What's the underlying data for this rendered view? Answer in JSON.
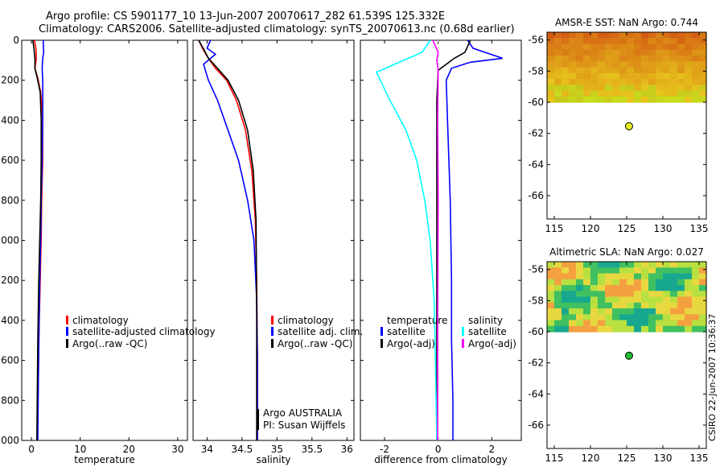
{
  "header": {
    "line1": "Argo profile: CS 5901177_10 13-Jun-2007 20070617_282 61.539S 125.332E",
    "line2": "Climatology: CARS2006. Satellite-adjusted climatology: synTS_20070613.nc (0.68d earlier)"
  },
  "stamp": "CSIRO 22-Jun-2007 10:36:37",
  "colors": {
    "climatology": "#ff0000",
    "satellite": "#0000ff",
    "argo": "#000000",
    "sal_satellite": "#00ffff",
    "sal_argo": "#ff00ff"
  },
  "chart_data": [
    {
      "type": "line",
      "title": "",
      "xlabel": "temperature",
      "ylabel": "",
      "xlim": [
        -2,
        32
      ],
      "ylim": [
        2000,
        0
      ],
      "y_reversed": true,
      "xticks": [
        "0",
        "10",
        "20",
        "30"
      ],
      "xtick_values": [
        0,
        10,
        20,
        30
      ],
      "yticks": [
        "0",
        "200",
        "400",
        "600",
        "800",
        "1000",
        "1200",
        "1400",
        "1600",
        "1800",
        "2000"
      ],
      "ytick_values": [
        0,
        200,
        400,
        600,
        800,
        1000,
        1200,
        1400,
        1600,
        1800,
        2000
      ],
      "series": [
        {
          "name": "climatology",
          "color": "#ff0000",
          "x": [
            0.6,
            0.9,
            1.0,
            0.7,
            1.3,
            1.9,
            2.3,
            2.3,
            2.1,
            2.0,
            1.8,
            1.6,
            1.4,
            1.2
          ],
          "y": [
            0,
            40,
            90,
            140,
            190,
            260,
            400,
            600,
            800,
            1000,
            1200,
            1400,
            1700,
            2000
          ]
        },
        {
          "name": "satellite-adjusted climatology",
          "color": "#0000ff",
          "x": [
            2.4,
            2.5,
            2.3,
            2.2,
            2.3,
            2.3,
            2.2,
            2.0,
            1.9,
            1.7,
            1.5,
            1.3
          ],
          "y": [
            0,
            60,
            90,
            140,
            200,
            400,
            600,
            800,
            1000,
            1200,
            1500,
            2000
          ]
        },
        {
          "name": "Argo(..raw -QC)",
          "color": "#000000",
          "x": [
            0.3,
            0.5,
            0.7,
            0.7,
            1.2,
            1.8,
            2.0,
            2.0,
            1.9,
            1.7,
            1.5,
            1.3,
            1.1
          ],
          "y": [
            0,
            40,
            90,
            140,
            190,
            260,
            400,
            600,
            800,
            1000,
            1200,
            1500,
            2000
          ]
        }
      ],
      "legend": {
        "placement": "lower-right",
        "entries": [
          "climatology",
          "satellite-adjusted climatology",
          "Argo(..raw -QC)"
        ]
      }
    },
    {
      "type": "line",
      "title": "",
      "xlabel": "salinity",
      "ylabel": "",
      "xlim": [
        33.8,
        36.1
      ],
      "ylim": [
        2000,
        0
      ],
      "y_reversed": true,
      "xticks": [
        "34",
        "34.5",
        "35",
        "35.5",
        "36"
      ],
      "xtick_values": [
        34,
        34.5,
        35,
        35.5,
        36
      ],
      "series": [
        {
          "name": "climatology",
          "color": "#ff0000",
          "x": [
            33.88,
            33.95,
            34.02,
            34.12,
            34.28,
            34.42,
            34.55,
            34.64,
            34.69,
            34.71,
            34.72,
            34.72
          ],
          "y": [
            0,
            50,
            90,
            140,
            200,
            300,
            450,
            650,
            900,
            1200,
            1600,
            2000
          ]
        },
        {
          "name": "satellite adj. clim.",
          "color": "#0000ff",
          "x": [
            34.05,
            34.0,
            34.12,
            33.95,
            34.02,
            34.15,
            34.3,
            34.45,
            34.58,
            34.67,
            34.71,
            34.72,
            34.72
          ],
          "y": [
            0,
            40,
            70,
            120,
            200,
            300,
            450,
            600,
            800,
            1000,
            1300,
            1600,
            2000
          ]
        },
        {
          "name": "Argo(..raw -QC)",
          "color": "#000000",
          "x": [
            33.88,
            33.96,
            34.02,
            34.15,
            34.3,
            34.45,
            34.58,
            34.66,
            34.7,
            34.71,
            34.71
          ],
          "y": [
            0,
            50,
            90,
            140,
            200,
            300,
            450,
            650,
            900,
            1400,
            2000
          ]
        }
      ],
      "legend": {
        "placement": "lower-right",
        "entries": [
          "climatology",
          "satellite adj. clim.",
          "Argo(..raw -QC)"
        ]
      },
      "annotations": [
        "Argo AUSTRALIA",
        "PI: Susan Wijffels"
      ]
    },
    {
      "type": "line",
      "title": "",
      "xlabel": "difference from climatology",
      "ylabel": "",
      "xlim": [
        -2.9,
        3.1
      ],
      "ylim": [
        2000,
        0
      ],
      "y_reversed": true,
      "xticks": [
        "-2",
        "0",
        "2"
      ],
      "xtick_values": [
        -2,
        0,
        2
      ],
      "series": [
        {
          "name": "temperature satellite",
          "color": "#0000ff",
          "x": [
            1.1,
            1.3,
            2.4,
            1.2,
            0.5,
            0.3,
            0.35,
            0.45,
            0.5,
            0.5,
            0.55,
            0.55
          ],
          "y": [
            0,
            40,
            90,
            110,
            140,
            200,
            400,
            800,
            1200,
            1500,
            1800,
            2000
          ]
        },
        {
          "name": "temperature Argo(-adj)",
          "color": "#000000",
          "x": [
            1.2,
            1.0,
            0.6,
            0.0,
            -0.05,
            -0.05,
            -0.05,
            -0.05
          ],
          "y": [
            0,
            60,
            90,
            150,
            300,
            700,
            1200,
            2000
          ]
        },
        {
          "name": "salinity satellite",
          "color": "#00ffff",
          "x": [
            -0.3,
            -0.6,
            -2.3,
            -1.8,
            -1.2,
            -0.8,
            -0.5,
            -0.3,
            -0.15,
            -0.1,
            -0.05
          ],
          "y": [
            0,
            60,
            160,
            300,
            450,
            600,
            800,
            1000,
            1300,
            1600,
            2000
          ]
        },
        {
          "name": "salinity Argo(-adj)",
          "color": "#ff00ff",
          "x": [
            -0.2,
            0.0,
            -0.05,
            0.0,
            -0.02,
            0.0,
            -0.02,
            -0.02
          ],
          "y": [
            0,
            60,
            100,
            150,
            400,
            800,
            1400,
            2000
          ]
        }
      ],
      "legend": {
        "placement": "lower",
        "headings": [
          "temperature",
          "salinity"
        ],
        "entries": [
          "satellite",
          "Argo(-adj)",
          "satellite",
          "Argo(-adj)"
        ]
      }
    },
    {
      "type": "heatmap",
      "title": "AMSR-E SST: NaN Argo: 0.744",
      "xlim": [
        114,
        136
      ],
      "ylim": [
        -67.5,
        -55.5
      ],
      "xticks": [
        "115",
        "120",
        "125",
        "130",
        "135"
      ],
      "xtick_values": [
        115,
        120,
        125,
        130,
        135
      ],
      "yticks": [
        "-56",
        "-58",
        "-60",
        "-62",
        "-64",
        "-66"
      ],
      "ytick_values": [
        -56,
        -58,
        -60,
        -62,
        -64,
        -66
      ],
      "data_extent": {
        "lon": [
          114,
          136
        ],
        "lat": [
          -60,
          -55.5
        ]
      },
      "marker": {
        "lon": 125.332,
        "lat": -61.539,
        "color": "#e8f020"
      }
    },
    {
      "type": "heatmap",
      "title": "Altimetric SLA: NaN Argo: 0.027",
      "xlim": [
        114,
        136
      ],
      "ylim": [
        -67.5,
        -55.5
      ],
      "xticks": [
        "115",
        "120",
        "125",
        "130",
        "135"
      ],
      "xtick_values": [
        115,
        120,
        125,
        130,
        135
      ],
      "yticks": [
        "-56",
        "-58",
        "-60",
        "-62",
        "-64",
        "-66"
      ],
      "ytick_values": [
        -56,
        -58,
        -60,
        -62,
        -64,
        -66
      ],
      "data_extent": {
        "lon": [
          114,
          136
        ],
        "lat": [
          -60,
          -55.5
        ]
      },
      "marker": {
        "lon": 125.332,
        "lat": -61.539,
        "color": "#20c030"
      }
    }
  ]
}
